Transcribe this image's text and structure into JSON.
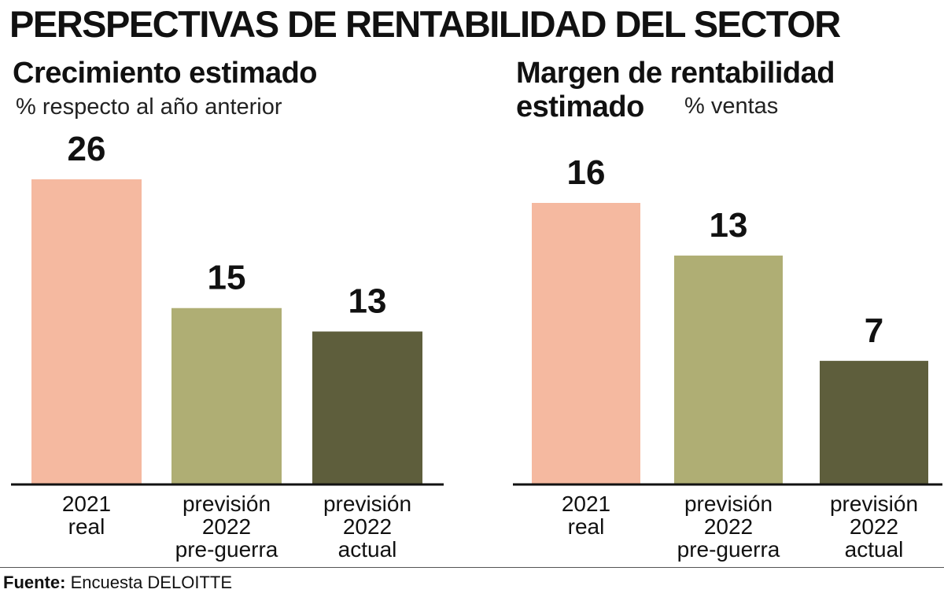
{
  "title": "PERSPECTIVAS DE RENTABILIDAD DEL SECTOR",
  "panels": [
    {
      "title_line1": "Crecimiento estimado",
      "title_line2": "",
      "subtitle": "% respecto al año anterior"
    },
    {
      "title_line1": "Margen de rentabilidad",
      "title_line2": "estimado",
      "subtitle": "% ventas"
    }
  ],
  "colors": {
    "real": "#f5b9a0",
    "pre_guerra": "#afae74",
    "actual": "#5e5e3c",
    "baseline": "#111111"
  },
  "chart_data": [
    {
      "type": "bar",
      "title": "Crecimiento estimado",
      "ylabel": "% respecto al año anterior",
      "categories": [
        [
          "2021",
          "real"
        ],
        [
          "previsión",
          "2022",
          "pre-guerra"
        ],
        [
          "previsión",
          "2022",
          "actual"
        ]
      ],
      "values": [
        26,
        15,
        13
      ],
      "ylim": [
        0,
        26
      ],
      "grid": false,
      "legend": "none"
    },
    {
      "type": "bar",
      "title": "Margen de rentabilidad estimado",
      "ylabel": "% ventas",
      "categories": [
        [
          "2021",
          "real"
        ],
        [
          "previsión",
          "2022",
          "pre-guerra"
        ],
        [
          "previsión",
          "2022",
          "actual"
        ]
      ],
      "values": [
        16,
        13,
        7
      ],
      "ylim": [
        0,
        16
      ],
      "grid": false,
      "legend": "none"
    }
  ],
  "footer": {
    "label": "Fuente:",
    "text": "Encuesta DELOITTE"
  }
}
